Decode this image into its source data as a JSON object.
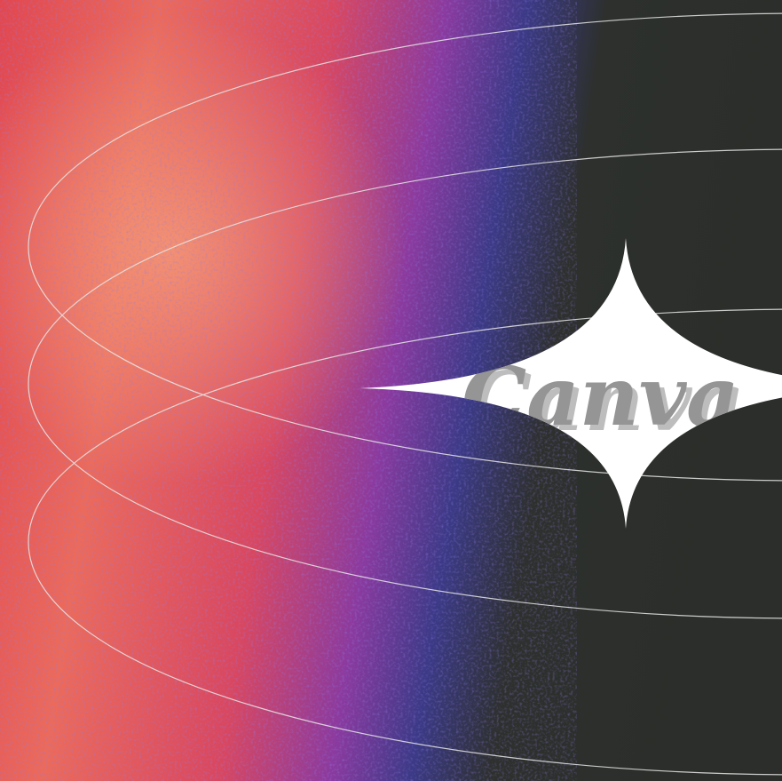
{
  "logo_text": "Canva"
}
